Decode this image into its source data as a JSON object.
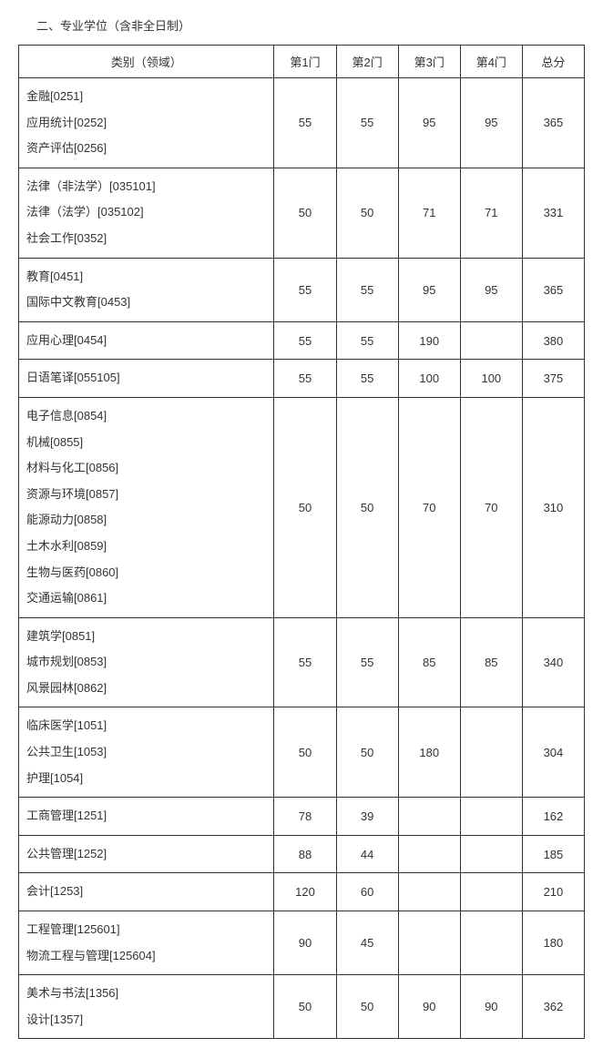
{
  "title": "二、专业学位（含非全日制）",
  "headers": {
    "category": "类别（领域）",
    "s1": "第1门",
    "s2": "第2门",
    "s3": "第3门",
    "s4": "第4门",
    "total": "总分"
  },
  "rows": [
    {
      "categories": [
        "金融[0251]",
        "应用统计[0252]",
        "资产评估[0256]"
      ],
      "s1": "55",
      "s2": "55",
      "s3": "95",
      "s4": "95",
      "total": "365"
    },
    {
      "categories": [
        "法律（非法学）[035101]",
        "法律（法学）[035102]",
        "社会工作[0352]"
      ],
      "s1": "50",
      "s2": "50",
      "s3": "71",
      "s4": "71",
      "total": "331"
    },
    {
      "categories": [
        "教育[0451]",
        "国际中文教育[0453]"
      ],
      "s1": "55",
      "s2": "55",
      "s3": "95",
      "s4": "95",
      "total": "365"
    },
    {
      "categories": [
        "应用心理[0454]"
      ],
      "s1": "55",
      "s2": "55",
      "s3": "190",
      "s4": "",
      "total": "380"
    },
    {
      "categories": [
        "日语笔译[055105]"
      ],
      "s1": "55",
      "s2": "55",
      "s3": "100",
      "s4": "100",
      "total": "375"
    },
    {
      "categories": [
        "电子信息[0854]",
        "机械[0855]",
        "材料与化工[0856]",
        "资源与环境[0857]",
        "能源动力[0858]",
        "土木水利[0859]",
        "生物与医药[0860]",
        "交通运输[0861]"
      ],
      "s1": "50",
      "s2": "50",
      "s3": "70",
      "s4": "70",
      "total": "310"
    },
    {
      "categories": [
        "建筑学[0851]",
        "城市规划[0853]",
        "风景园林[0862]"
      ],
      "s1": "55",
      "s2": "55",
      "s3": "85",
      "s4": "85",
      "total": "340"
    },
    {
      "categories": [
        "临床医学[1051]",
        "公共卫生[1053]",
        "护理[1054]"
      ],
      "s1": "50",
      "s2": "50",
      "s3": "180",
      "s4": "",
      "total": "304"
    },
    {
      "categories": [
        "工商管理[1251]"
      ],
      "s1": "78",
      "s2": "39",
      "s3": "",
      "s4": "",
      "total": "162"
    },
    {
      "categories": [
        "公共管理[1252]"
      ],
      "s1": "88",
      "s2": "44",
      "s3": "",
      "s4": "",
      "total": "185"
    },
    {
      "categories": [
        "会计[1253]"
      ],
      "s1": "120",
      "s2": "60",
      "s3": "",
      "s4": "",
      "total": "210"
    },
    {
      "categories": [
        "工程管理[125601]",
        "物流工程与管理[125604]"
      ],
      "s1": "90",
      "s2": "45",
      "s3": "",
      "s4": "",
      "total": "180"
    },
    {
      "categories": [
        "美术与书法[1356]",
        "设计[1357]"
      ],
      "s1": "50",
      "s2": "50",
      "s3": "90",
      "s4": "90",
      "total": "362"
    }
  ]
}
